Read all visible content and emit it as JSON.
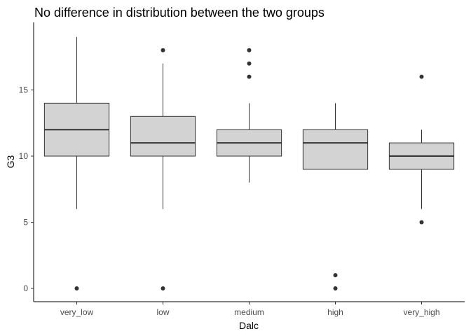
{
  "chart_data": {
    "type": "boxplot",
    "title": "No difference in distribution between the two groups",
    "xlabel": "Dalc",
    "ylabel": "G3",
    "categories": [
      "very_low",
      "low",
      "medium",
      "high",
      "very_high"
    ],
    "ylim": [
      -1,
      20
    ],
    "yticks": [
      0,
      5,
      10,
      15
    ],
    "grid": false,
    "legend": "none",
    "box_fill": "#d3d3d3",
    "line_color": "#333333",
    "boxes": [
      {
        "category": "very_low",
        "whisker_low": 6,
        "q1": 10,
        "median": 12,
        "q3": 14,
        "whisker_high": 19,
        "outliers": [
          0
        ]
      },
      {
        "category": "low",
        "whisker_low": 6,
        "q1": 10,
        "median": 11,
        "q3": 13,
        "whisker_high": 17,
        "outliers": [
          0,
          18
        ]
      },
      {
        "category": "medium",
        "whisker_low": 8,
        "q1": 10,
        "median": 11,
        "q3": 12,
        "whisker_high": 14,
        "outliers": [
          16,
          17,
          18
        ]
      },
      {
        "category": "high",
        "whisker_low": 9,
        "q1": 9,
        "median": 11,
        "q3": 12,
        "whisker_high": 14,
        "outliers": [
          0,
          1
        ]
      },
      {
        "category": "very_high",
        "whisker_low": 6,
        "q1": 9,
        "median": 10,
        "q3": 11,
        "whisker_high": 12,
        "outliers": [
          5,
          16
        ]
      }
    ]
  }
}
